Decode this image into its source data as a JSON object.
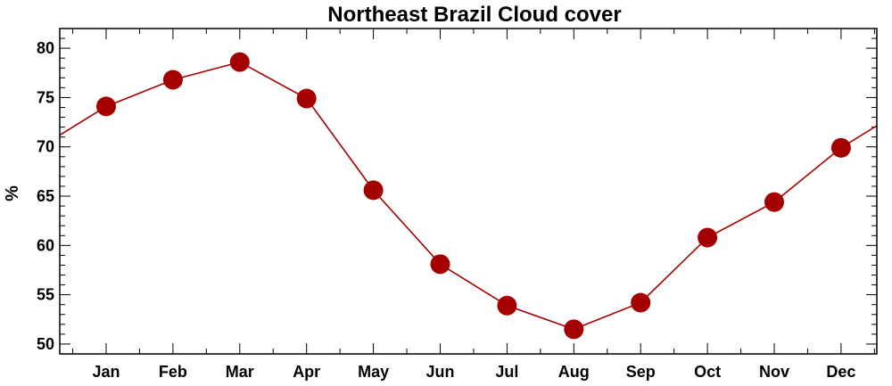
{
  "chart_data": {
    "type": "line",
    "title": "Northeast Brazil Cloud cover",
    "xlabel": "",
    "ylabel": "%",
    "categories": [
      "Jan",
      "Feb",
      "Mar",
      "Apr",
      "May",
      "Jun",
      "Jul",
      "Aug",
      "Sep",
      "Oct",
      "Nov",
      "Dec"
    ],
    "series": [
      {
        "name": "",
        "values": [
          74.1,
          76.8,
          78.6,
          74.9,
          65.6,
          58.1,
          53.9,
          51.5,
          54.2,
          60.8,
          64.4,
          69.9
        ]
      }
    ],
    "ylim": [
      49,
      82
    ],
    "yticks": [
      50,
      55,
      60,
      65,
      70,
      75,
      80
    ],
    "grid": false,
    "legend": "none",
    "line_wraps_around_year": true,
    "colors": {
      "series": "#a50000",
      "axes": "#000000"
    }
  }
}
